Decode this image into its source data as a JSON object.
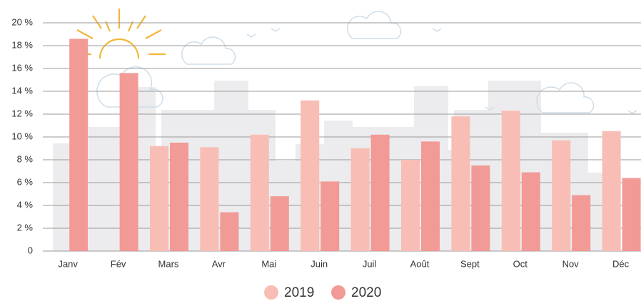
{
  "chart_data": {
    "type": "bar",
    "categories": [
      "Janv",
      "Fév",
      "Mars",
      "Avr",
      "Mai",
      "Juin",
      "Juil",
      "Août",
      "Sept",
      "Oct",
      "Nov",
      "Déc"
    ],
    "series": [
      {
        "name": "2019",
        "color": "#f8bdb5",
        "values": [
          null,
          null,
          9.2,
          9.1,
          10.2,
          13.2,
          9.0,
          8.0,
          11.8,
          12.3,
          9.7,
          10.5
        ]
      },
      {
        "name": "2020",
        "color": "#f29a96",
        "values": [
          18.6,
          15.6,
          9.5,
          3.4,
          4.8,
          6.1,
          10.2,
          9.6,
          7.5,
          6.9,
          4.9,
          6.4
        ]
      }
    ],
    "ylim": [
      0,
      20
    ],
    "yticks": [
      0,
      {
        "value": 2,
        "label": "2 %"
      },
      {
        "value": 4,
        "label": "4 %"
      },
      {
        "value": 6,
        "label": "6 %"
      },
      {
        "value": 8,
        "label": "8 %"
      },
      {
        "value": 10,
        "label": "10 %"
      },
      {
        "value": 12,
        "label": "12 %"
      },
      {
        "value": 14,
        "label": "14 %"
      },
      {
        "value": 16,
        "label": "16 %"
      },
      {
        "value": 18,
        "label": "18 %"
      },
      {
        "value": 20,
        "label": "20 %"
      }
    ],
    "grid": true
  }
}
